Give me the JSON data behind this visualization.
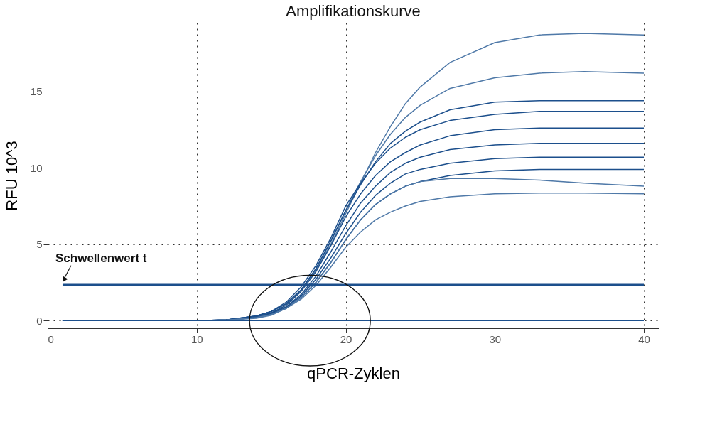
{
  "chart_data": {
    "type": "line",
    "title": "Amplifikationskurve",
    "xlabel": "qPCR-Zyklen",
    "ylabel": "RFU 10^3",
    "x": [
      1,
      10,
      12,
      14,
      15,
      16,
      17,
      18,
      19,
      20,
      21,
      22,
      23,
      24,
      25,
      27,
      30,
      33,
      36,
      40
    ],
    "series": [
      {
        "color": "#4f79a8",
        "values": [
          0,
          0,
          0.05,
          0.3,
          0.6,
          1.1,
          2.0,
          3.3,
          5.0,
          7.0,
          9.0,
          11.0,
          12.7,
          14.2,
          15.3,
          16.9,
          18.2,
          18.7,
          18.8,
          18.7
        ]
      },
      {
        "color": "#4f79a8",
        "values": [
          0,
          0,
          0.05,
          0.3,
          0.6,
          1.1,
          2.0,
          3.4,
          5.2,
          7.2,
          9.1,
          10.8,
          12.2,
          13.3,
          14.1,
          15.2,
          15.9,
          16.2,
          16.3,
          16.2
        ]
      },
      {
        "color": "#1c4f8c",
        "values": [
          0,
          0,
          0.05,
          0.3,
          0.6,
          1.1,
          2.0,
          3.4,
          5.2,
          7.2,
          8.9,
          10.4,
          11.6,
          12.4,
          13.0,
          13.8,
          14.3,
          14.4,
          14.4,
          14.4
        ]
      },
      {
        "color": "#1c4f8c",
        "values": [
          0,
          0,
          0.05,
          0.3,
          0.6,
          1.2,
          2.2,
          3.6,
          5.4,
          7.5,
          9.0,
          10.3,
          11.3,
          12.0,
          12.5,
          13.1,
          13.5,
          13.7,
          13.7,
          13.7
        ]
      },
      {
        "color": "#1c4f8c",
        "values": [
          0,
          0,
          0.05,
          0.25,
          0.5,
          1.0,
          1.9,
          3.2,
          4.9,
          6.8,
          8.3,
          9.5,
          10.4,
          11.0,
          11.5,
          12.1,
          12.5,
          12.6,
          12.6,
          12.6
        ]
      },
      {
        "color": "#1c4f8c",
        "values": [
          0,
          0,
          0.05,
          0.25,
          0.5,
          0.9,
          1.7,
          2.9,
          4.5,
          6.2,
          7.7,
          8.8,
          9.7,
          10.3,
          10.7,
          11.2,
          11.5,
          11.6,
          11.6,
          11.6
        ]
      },
      {
        "color": "#1c4f8c",
        "values": [
          0,
          0,
          0.04,
          0.2,
          0.45,
          0.85,
          1.6,
          2.7,
          4.1,
          5.7,
          7.1,
          8.2,
          9.0,
          9.6,
          9.9,
          10.3,
          10.6,
          10.7,
          10.7,
          10.7
        ]
      },
      {
        "color": "#1c4f8c",
        "values": [
          0,
          0,
          0.04,
          0.2,
          0.4,
          0.8,
          1.5,
          2.5,
          3.8,
          5.3,
          6.6,
          7.6,
          8.3,
          8.8,
          9.1,
          9.5,
          9.8,
          9.9,
          9.9,
          9.9
        ]
      },
      {
        "color": "#4f79a8",
        "values": [
          0,
          0,
          0.04,
          0.2,
          0.4,
          0.8,
          1.5,
          2.5,
          3.8,
          5.3,
          6.6,
          7.6,
          8.3,
          8.8,
          9.1,
          9.3,
          9.3,
          9.2,
          9.0,
          8.8
        ]
      },
      {
        "color": "#4f79a8",
        "values": [
          0,
          0,
          0.03,
          0.15,
          0.35,
          0.8,
          1.4,
          2.3,
          3.5,
          4.8,
          5.8,
          6.6,
          7.1,
          7.5,
          7.8,
          8.1,
          8.3,
          8.35,
          8.35,
          8.3
        ]
      },
      {
        "color": "#1c4f8c",
        "values": [
          0,
          0,
          0,
          0,
          0,
          0,
          0,
          0,
          0,
          0,
          0,
          0,
          0,
          0,
          0,
          0,
          0,
          0,
          0,
          0
        ]
      }
    ],
    "xlim": [
      0,
      41
    ],
    "xticks": [
      0,
      10,
      20,
      30,
      40
    ],
    "ylim": [
      -0.5,
      19.5
    ],
    "yticks": [
      0,
      5,
      10,
      15
    ],
    "ref_lines": [
      {
        "axis": "y",
        "value": 2.35,
        "label": "Schwellenwert t",
        "color": "#1c4f8c"
      }
    ],
    "grid": true,
    "legend": false,
    "marker": "none",
    "line_style": "solid"
  }
}
